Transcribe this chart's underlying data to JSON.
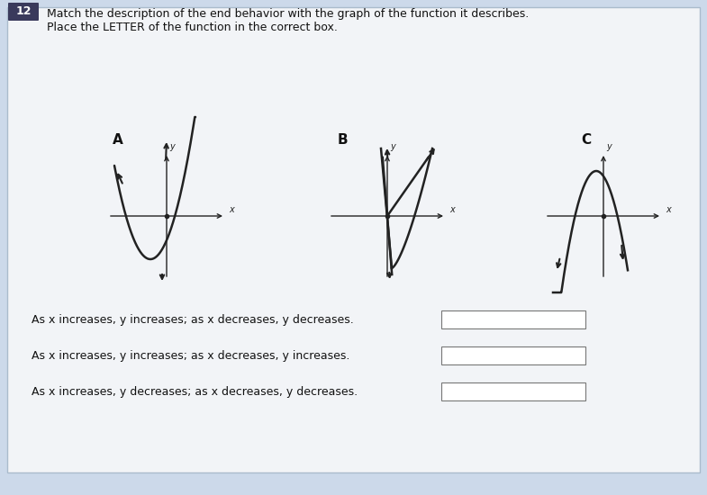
{
  "background_color": "#ccd9ea",
  "panel_color": "#f2f4f7",
  "title_number": "12",
  "title_line1": "Match the description of the end behavior with the graph of the function it describes.",
  "title_line2": "Place the LETTER of the function in the correct box.",
  "graph_labels": [
    "A",
    "B",
    "C"
  ],
  "descriptions": [
    "As x increases, y increases; as x decreases, y decreases.",
    "As x increases, y increases; as x decreases, y increases.",
    "As x increases, y decreases; as x decreases, y decreases."
  ],
  "text_color": "#111111",
  "box_color": "#ffffff",
  "axis_color": "#222222",
  "curve_color": "#222222",
  "badge_color": "#3a3a5c"
}
